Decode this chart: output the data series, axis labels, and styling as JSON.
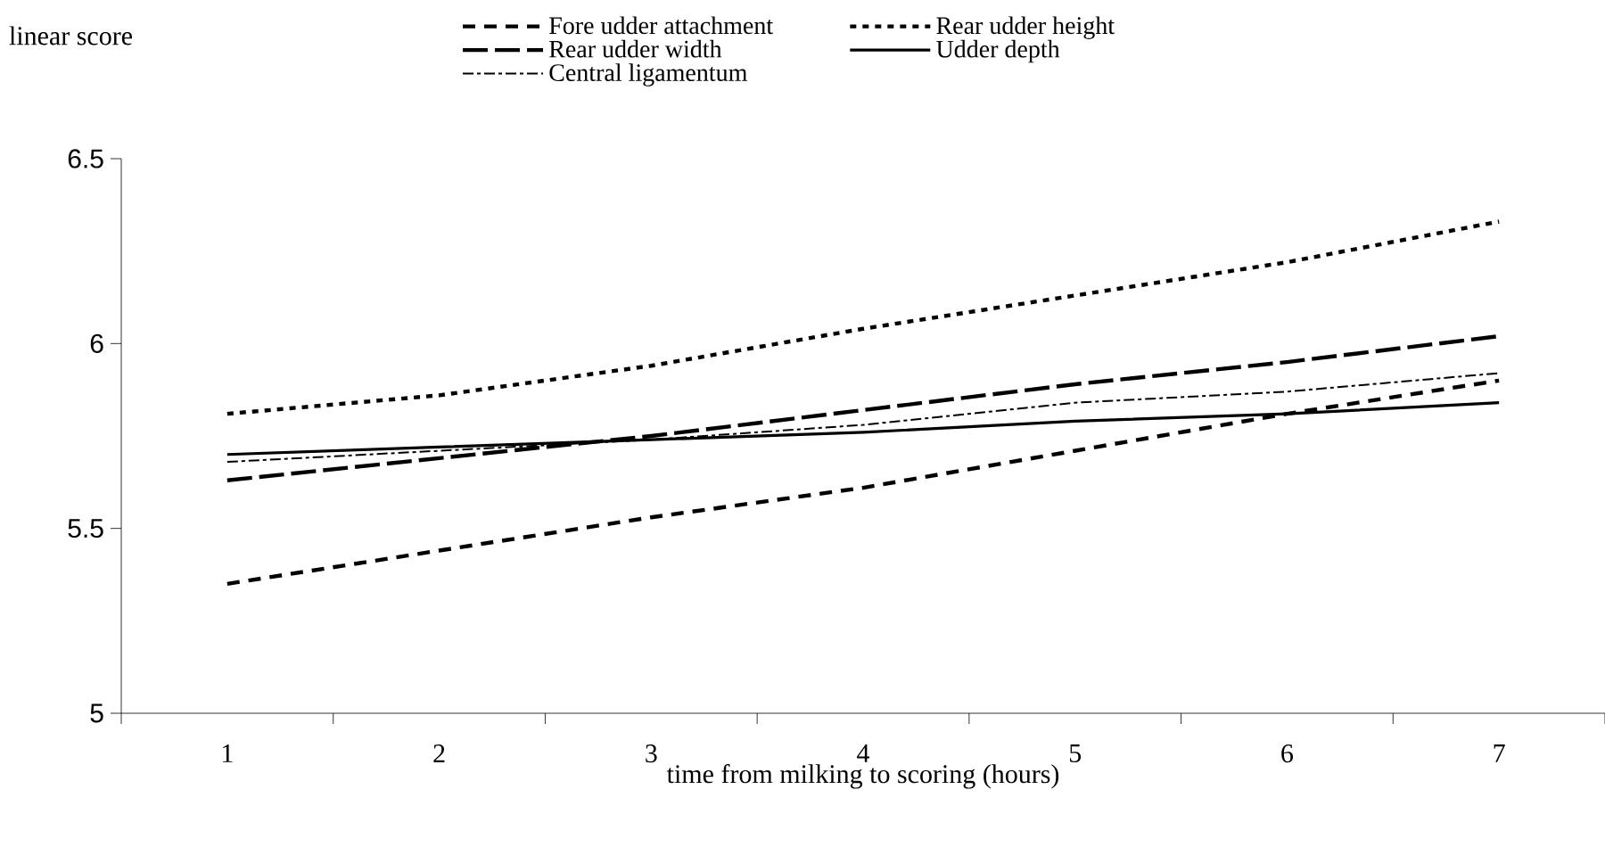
{
  "chart_data": {
    "type": "line",
    "xlabel": "time from milking to scoring (hours)",
    "ylabel": "linear score",
    "categories": [
      "1",
      "2",
      "3",
      "4",
      "5",
      "6",
      "7"
    ],
    "series": [
      {
        "name": "Fore udder attachment",
        "color": "#000000",
        "line_style": "dashed",
        "values": [
          5.35,
          5.44,
          5.53,
          5.61,
          5.71,
          5.81,
          5.9
        ]
      },
      {
        "name": "Rear udder height",
        "color": "#000000",
        "line_style": "dotted",
        "values": [
          5.81,
          5.86,
          5.94,
          6.04,
          6.13,
          6.22,
          6.33
        ]
      },
      {
        "name": "Rear udder width",
        "color": "#000000",
        "line_style": "longdash",
        "values": [
          5.63,
          5.69,
          5.75,
          5.82,
          5.89,
          5.95,
          6.02
        ]
      },
      {
        "name": "Udder depth",
        "color": "#000000",
        "line_style": "solid",
        "values": [
          5.7,
          5.72,
          5.74,
          5.76,
          5.79,
          5.81,
          5.84
        ]
      },
      {
        "name": "Central ligamentum",
        "color": "#000000",
        "line_style": "dashdot",
        "values": [
          5.68,
          5.71,
          5.74,
          5.78,
          5.84,
          5.87,
          5.92
        ]
      }
    ],
    "ylim": [
      5,
      6.5
    ],
    "yticks": [
      5,
      5.5,
      6,
      6.5
    ],
    "grid": false,
    "legend": "top",
    "marker": "none"
  }
}
